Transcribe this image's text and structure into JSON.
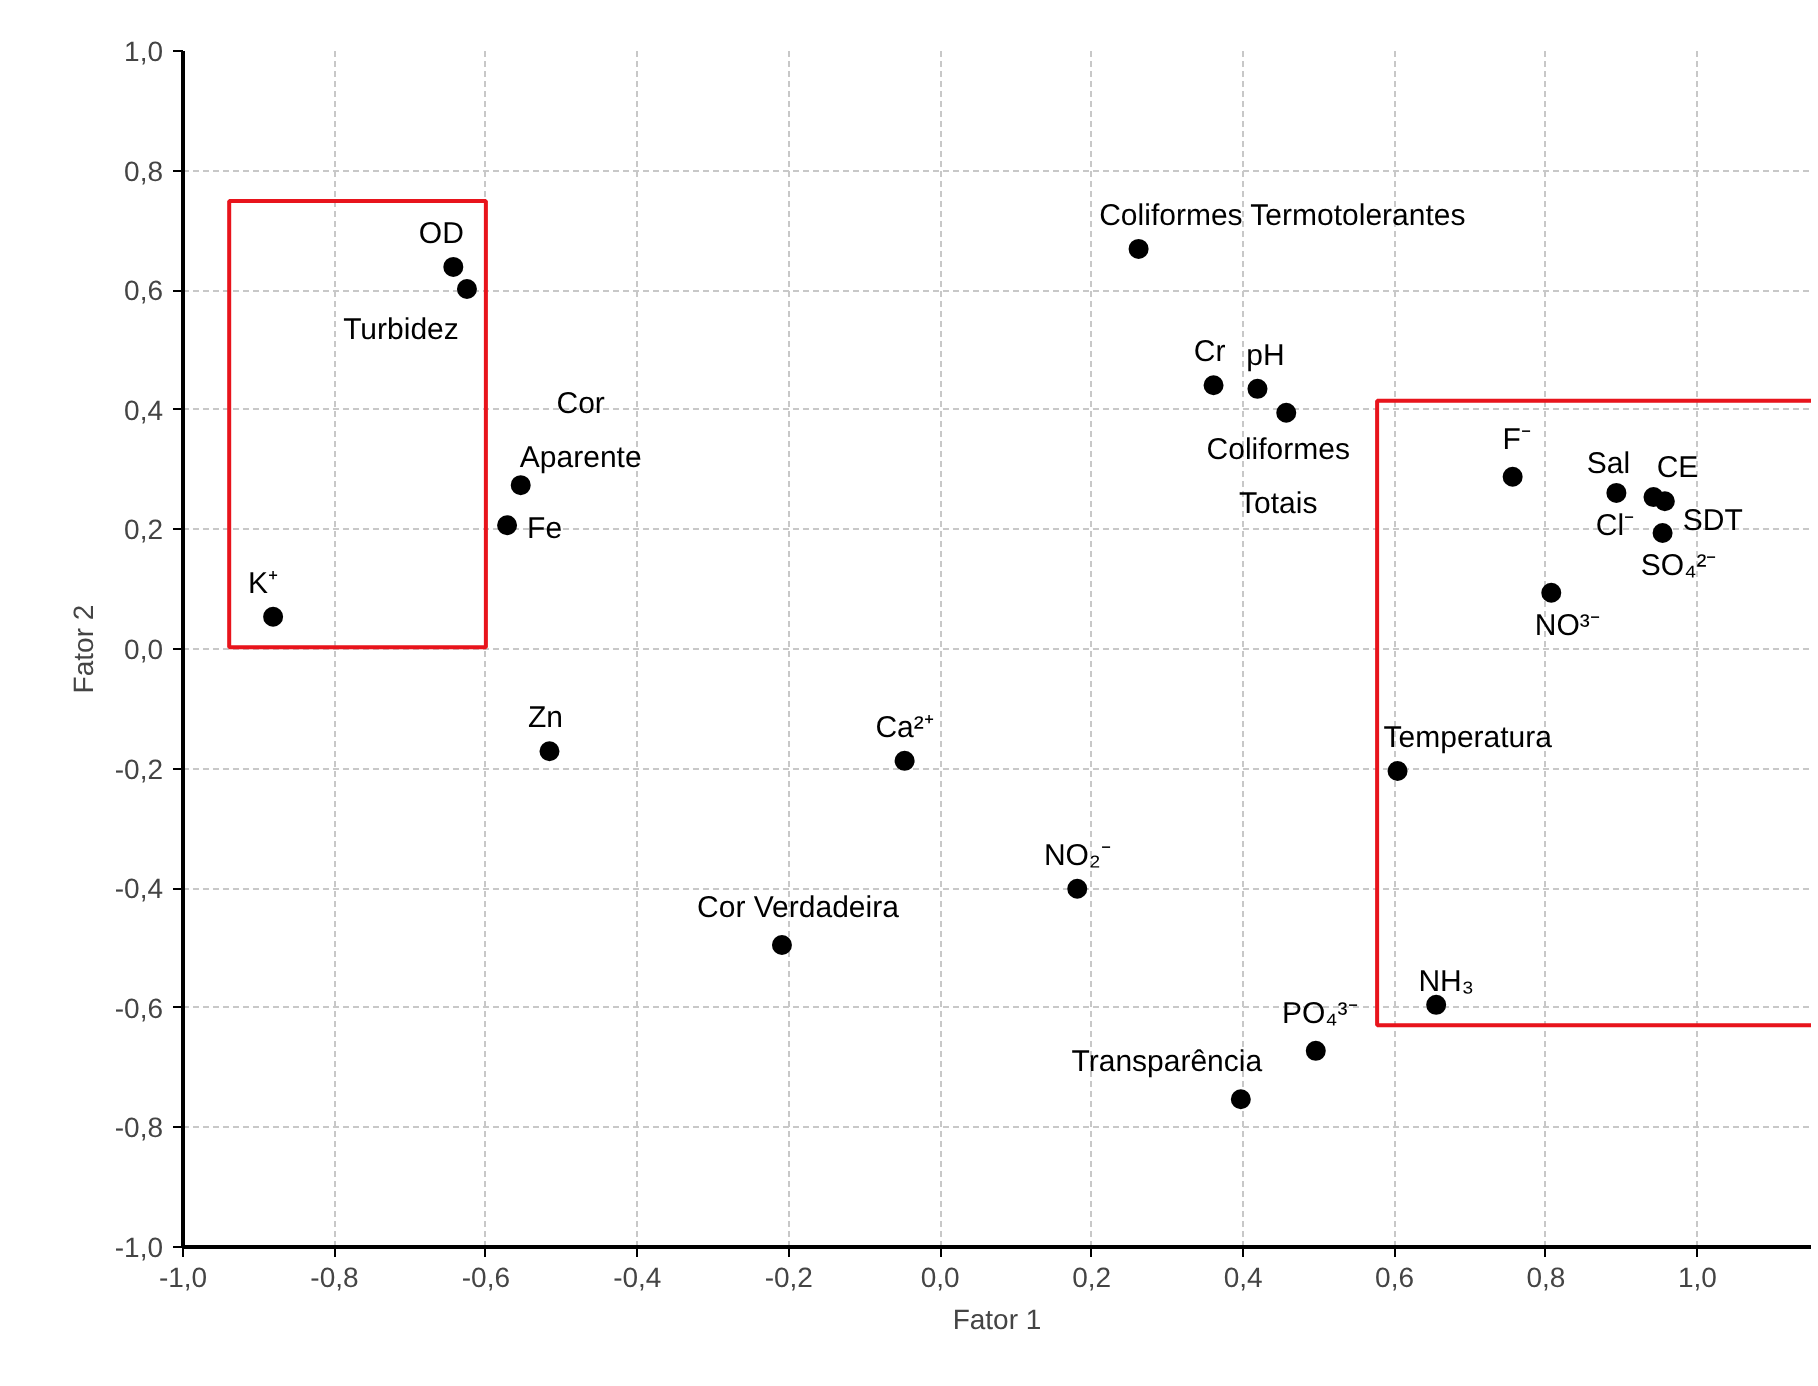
{
  "chart_data": {
    "type": "scatter",
    "xlabel": "Fator 1",
    "ylabel": "Fator 2",
    "xlim": [
      -1.0,
      1.15
    ],
    "ylim": [
      -1.0,
      1.0
    ],
    "xticks": [
      {
        "value": -1.0,
        "label": "-1,0"
      },
      {
        "value": -0.8,
        "label": "-0,8"
      },
      {
        "value": -0.6,
        "label": "-0,6"
      },
      {
        "value": -0.4,
        "label": "-0,4"
      },
      {
        "value": -0.2,
        "label": "-0,2"
      },
      {
        "value": 0.0,
        "label": "0,0"
      },
      {
        "value": 0.2,
        "label": "0,2"
      },
      {
        "value": 0.4,
        "label": "0,4"
      },
      {
        "value": 0.6,
        "label": "0,6"
      },
      {
        "value": 0.8,
        "label": "0,8"
      },
      {
        "value": 1.0,
        "label": "1,0"
      }
    ],
    "yticks": [
      {
        "value": -1.0,
        "label": "-1,0"
      },
      {
        "value": -0.8,
        "label": "-0,8"
      },
      {
        "value": -0.6,
        "label": "-0,6"
      },
      {
        "value": -0.4,
        "label": "-0,4"
      },
      {
        "value": -0.2,
        "label": "-0,2"
      },
      {
        "value": 0.0,
        "label": "0,0"
      },
      {
        "value": 0.2,
        "label": "0,2"
      },
      {
        "value": 0.4,
        "label": "0,4"
      },
      {
        "value": 0.6,
        "label": "0,6"
      },
      {
        "value": 0.8,
        "label": "0,8"
      },
      {
        "value": 1.0,
        "label": "1,0"
      }
    ],
    "grid": true,
    "marker": "circle",
    "series": [
      {
        "color": "#000000",
        "x": [
          -0.643,
          -0.625,
          -0.554,
          -0.572,
          -0.881,
          -0.516,
          -0.047,
          -0.209,
          0.181,
          0.397,
          0.496,
          0.655,
          0.604,
          0.262,
          0.361,
          0.419,
          0.457,
          0.756,
          0.893,
          0.942,
          0.957,
          null,
          0.954,
          0.807
        ],
        "values": [
          0.639,
          0.602,
          0.274,
          0.207,
          0.054,
          -0.171,
          -0.187,
          -0.495,
          -0.401,
          -0.753,
          -0.672,
          -0.595,
          -0.204,
          0.669,
          0.441,
          0.435,
          0.395,
          0.288,
          0.261,
          0.254,
          0.247,
          null,
          0.194,
          0.094
        ]
      }
    ],
    "annotations": [
      {
        "text": "OD",
        "x": -0.643,
        "y": 0.639
      },
      {
        "text": "Turbidez",
        "x": -0.625,
        "y": 0.602
      },
      {
        "text": "Cor Aparente",
        "x": -0.554,
        "y": 0.274
      },
      {
        "text": "Fe",
        "x": -0.572,
        "y": 0.207
      },
      {
        "text": "K⁺",
        "x": -0.881,
        "y": 0.054
      },
      {
        "text": "Zn",
        "x": -0.516,
        "y": -0.171
      },
      {
        "text": "Ca²⁺",
        "x": -0.047,
        "y": -0.187
      },
      {
        "text": "Cor Verdadeira",
        "x": -0.209,
        "y": -0.495
      },
      {
        "text": "NO₂⁻",
        "x": 0.181,
        "y": -0.401
      },
      {
        "text": "Transparência",
        "x": 0.397,
        "y": -0.753
      },
      {
        "text": "PO₄³⁻",
        "x": 0.496,
        "y": -0.672
      },
      {
        "text": "NH₃",
        "x": 0.655,
        "y": -0.595
      },
      {
        "text": "Temperatura",
        "x": 0.604,
        "y": -0.204
      },
      {
        "text": "Coliformes Termotolerantes",
        "x": 0.262,
        "y": 0.669
      },
      {
        "text": "Cr",
        "x": 0.361,
        "y": 0.441
      },
      {
        "text": "pH",
        "x": 0.419,
        "y": 0.435
      },
      {
        "text": "Coliformes Totais",
        "x": 0.457,
        "y": 0.395
      },
      {
        "text": "F⁻",
        "x": 0.756,
        "y": 0.288
      },
      {
        "text": "Sal",
        "x": 0.893,
        "y": 0.261
      },
      {
        "text": "CE",
        "x": 0.942,
        "y": 0.254
      },
      {
        "text": "SDT",
        "x": 0.957,
        "y": 0.247
      },
      {
        "text": "Cl⁻",
        "x": 0.948,
        "y": 0.25
      },
      {
        "text": "SO₄²⁻",
        "x": 0.954,
        "y": 0.194
      },
      {
        "text": "NO³⁻",
        "x": 0.807,
        "y": 0.094
      }
    ]
  }
}
